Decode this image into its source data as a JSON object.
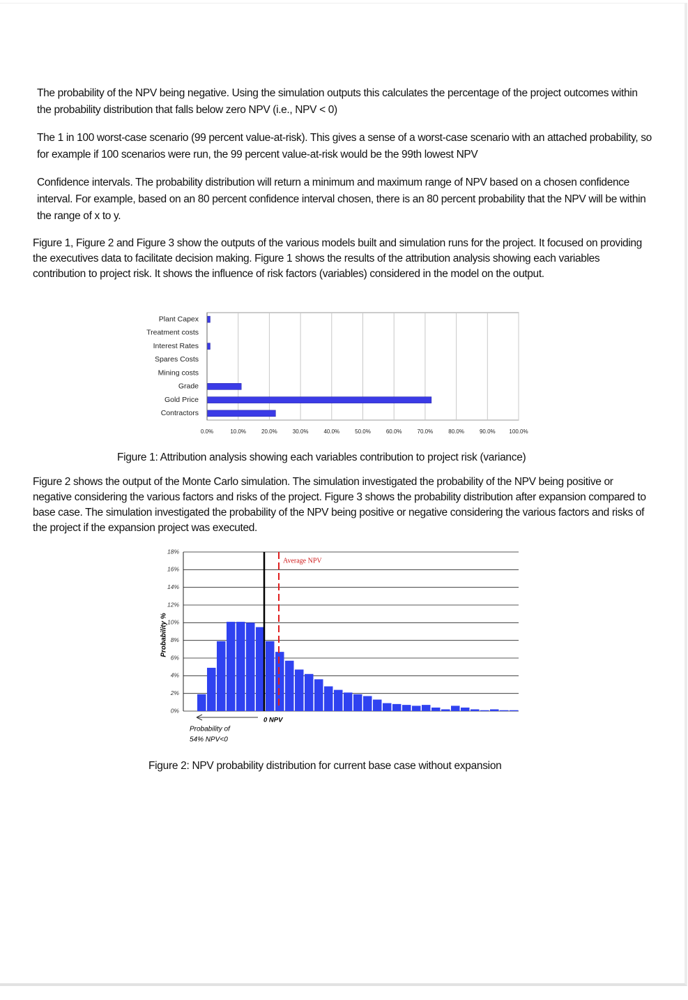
{
  "list": [
    "The probability of the NPV being negative. Using the simulation outputs this calculates the percentage of the project outcomes within the probability distribution that falls below zero NPV (i.e., NPV < 0)",
    "The 1 in 100 worst-case scenario (99 percent value-at-risk). This gives a sense of a worst-case scenario with an attached probability, so for example if 100 scenarios were run, the 99 percent value-at-risk would be the 99th lowest NPV",
    "Confidence intervals. The probability distribution will return a minimum and maximum range of NPV based on a chosen confidence interval. For example, based on an 80 percent confidence interval chosen, there is an 80 percent probability that the NPV will be within the range of x to y."
  ],
  "paragraphs": [
    "Figure 1, Figure 2 and Figure 3 show the outputs of the various models built and simulation runs for the project. It focused on providing the executives data to facilitate decision making. Figure 1 shows the results of the attribution analysis showing each variables contribution to project risk. It shows the influence of risk factors (variables) considered in the model on the output.",
    "Figure 2 shows the output of the Monte Carlo simulation. The simulation investigated the probability of the NPV being positive or negative considering the various factors and risks of the project. Figure 3 shows the probability distribution after expansion compared to base case. The simulation investigated the probability of the NPV being positive or negative considering the various factors and risks of the project if the expansion project was executed."
  ],
  "captions": [
    "Figure 1: Attribution analysis showing each variables contribution to project risk (variance)",
    "Figure 2: NPV probability distribution for current base case without expansion"
  ],
  "chart_data": [
    {
      "type": "hbar",
      "categories": [
        "Plant Capex",
        "Treatment costs",
        "Interest Rates",
        "Spares Costs",
        "Mining costs",
        "Grade",
        "Gold Price",
        "Contractors"
      ],
      "values": [
        1,
        0,
        1,
        0,
        0,
        11,
        72,
        22
      ],
      "color": "#3b3be6",
      "xlim": [
        0,
        100
      ],
      "xticks": [
        {
          "value": 0,
          "label": "0.0%"
        },
        {
          "value": 10,
          "label": "10.0%"
        },
        {
          "value": 20,
          "label": "20.0%"
        },
        {
          "value": 30,
          "label": "30.0%"
        },
        {
          "value": 40,
          "label": "40.0%"
        },
        {
          "value": 50,
          "label": "50.0%"
        },
        {
          "value": 60,
          "label": "60.0%"
        },
        {
          "value": 70,
          "label": "70.0%"
        },
        {
          "value": 80,
          "label": "80.0%"
        },
        {
          "value": 90,
          "label": "90.0%"
        },
        {
          "value": 100,
          "label": "100.0%"
        }
      ],
      "grid": true
    },
    {
      "type": "histogram",
      "y_label": "Probability %",
      "values": [
        1.9,
        4.9,
        7.9,
        10.1,
        10.1,
        10.0,
        9.5,
        7.9,
        6.7,
        5.7,
        4.7,
        4.2,
        3.6,
        2.8,
        2.4,
        2.1,
        1.9,
        1.7,
        1.3,
        0.9,
        0.8,
        0.7,
        0.6,
        0.7,
        0.4,
        0.2,
        0.6,
        0.4,
        0.2,
        0.1,
        0.2,
        0.1,
        0.1
      ],
      "color": "#2f42f0",
      "ylim": [
        0,
        18
      ],
      "yticks": [
        {
          "value": 0,
          "label": "0%"
        },
        {
          "value": 2,
          "label": "2%"
        },
        {
          "value": 4,
          "label": "4%"
        },
        {
          "value": 6,
          "label": "6%"
        },
        {
          "value": 8,
          "label": "8%"
        },
        {
          "value": 10,
          "label": "10%"
        },
        {
          "value": 12,
          "label": "12%"
        },
        {
          "value": 14,
          "label": "14%"
        },
        {
          "value": 16,
          "label": "16%"
        },
        {
          "value": 18,
          "label": "18%"
        }
      ],
      "grid": true,
      "annotations": {
        "average": "Average NPV",
        "zero": "0 NPV",
        "probability": [
          "Probability of",
          "54% NPV<0"
        ]
      }
    }
  ]
}
